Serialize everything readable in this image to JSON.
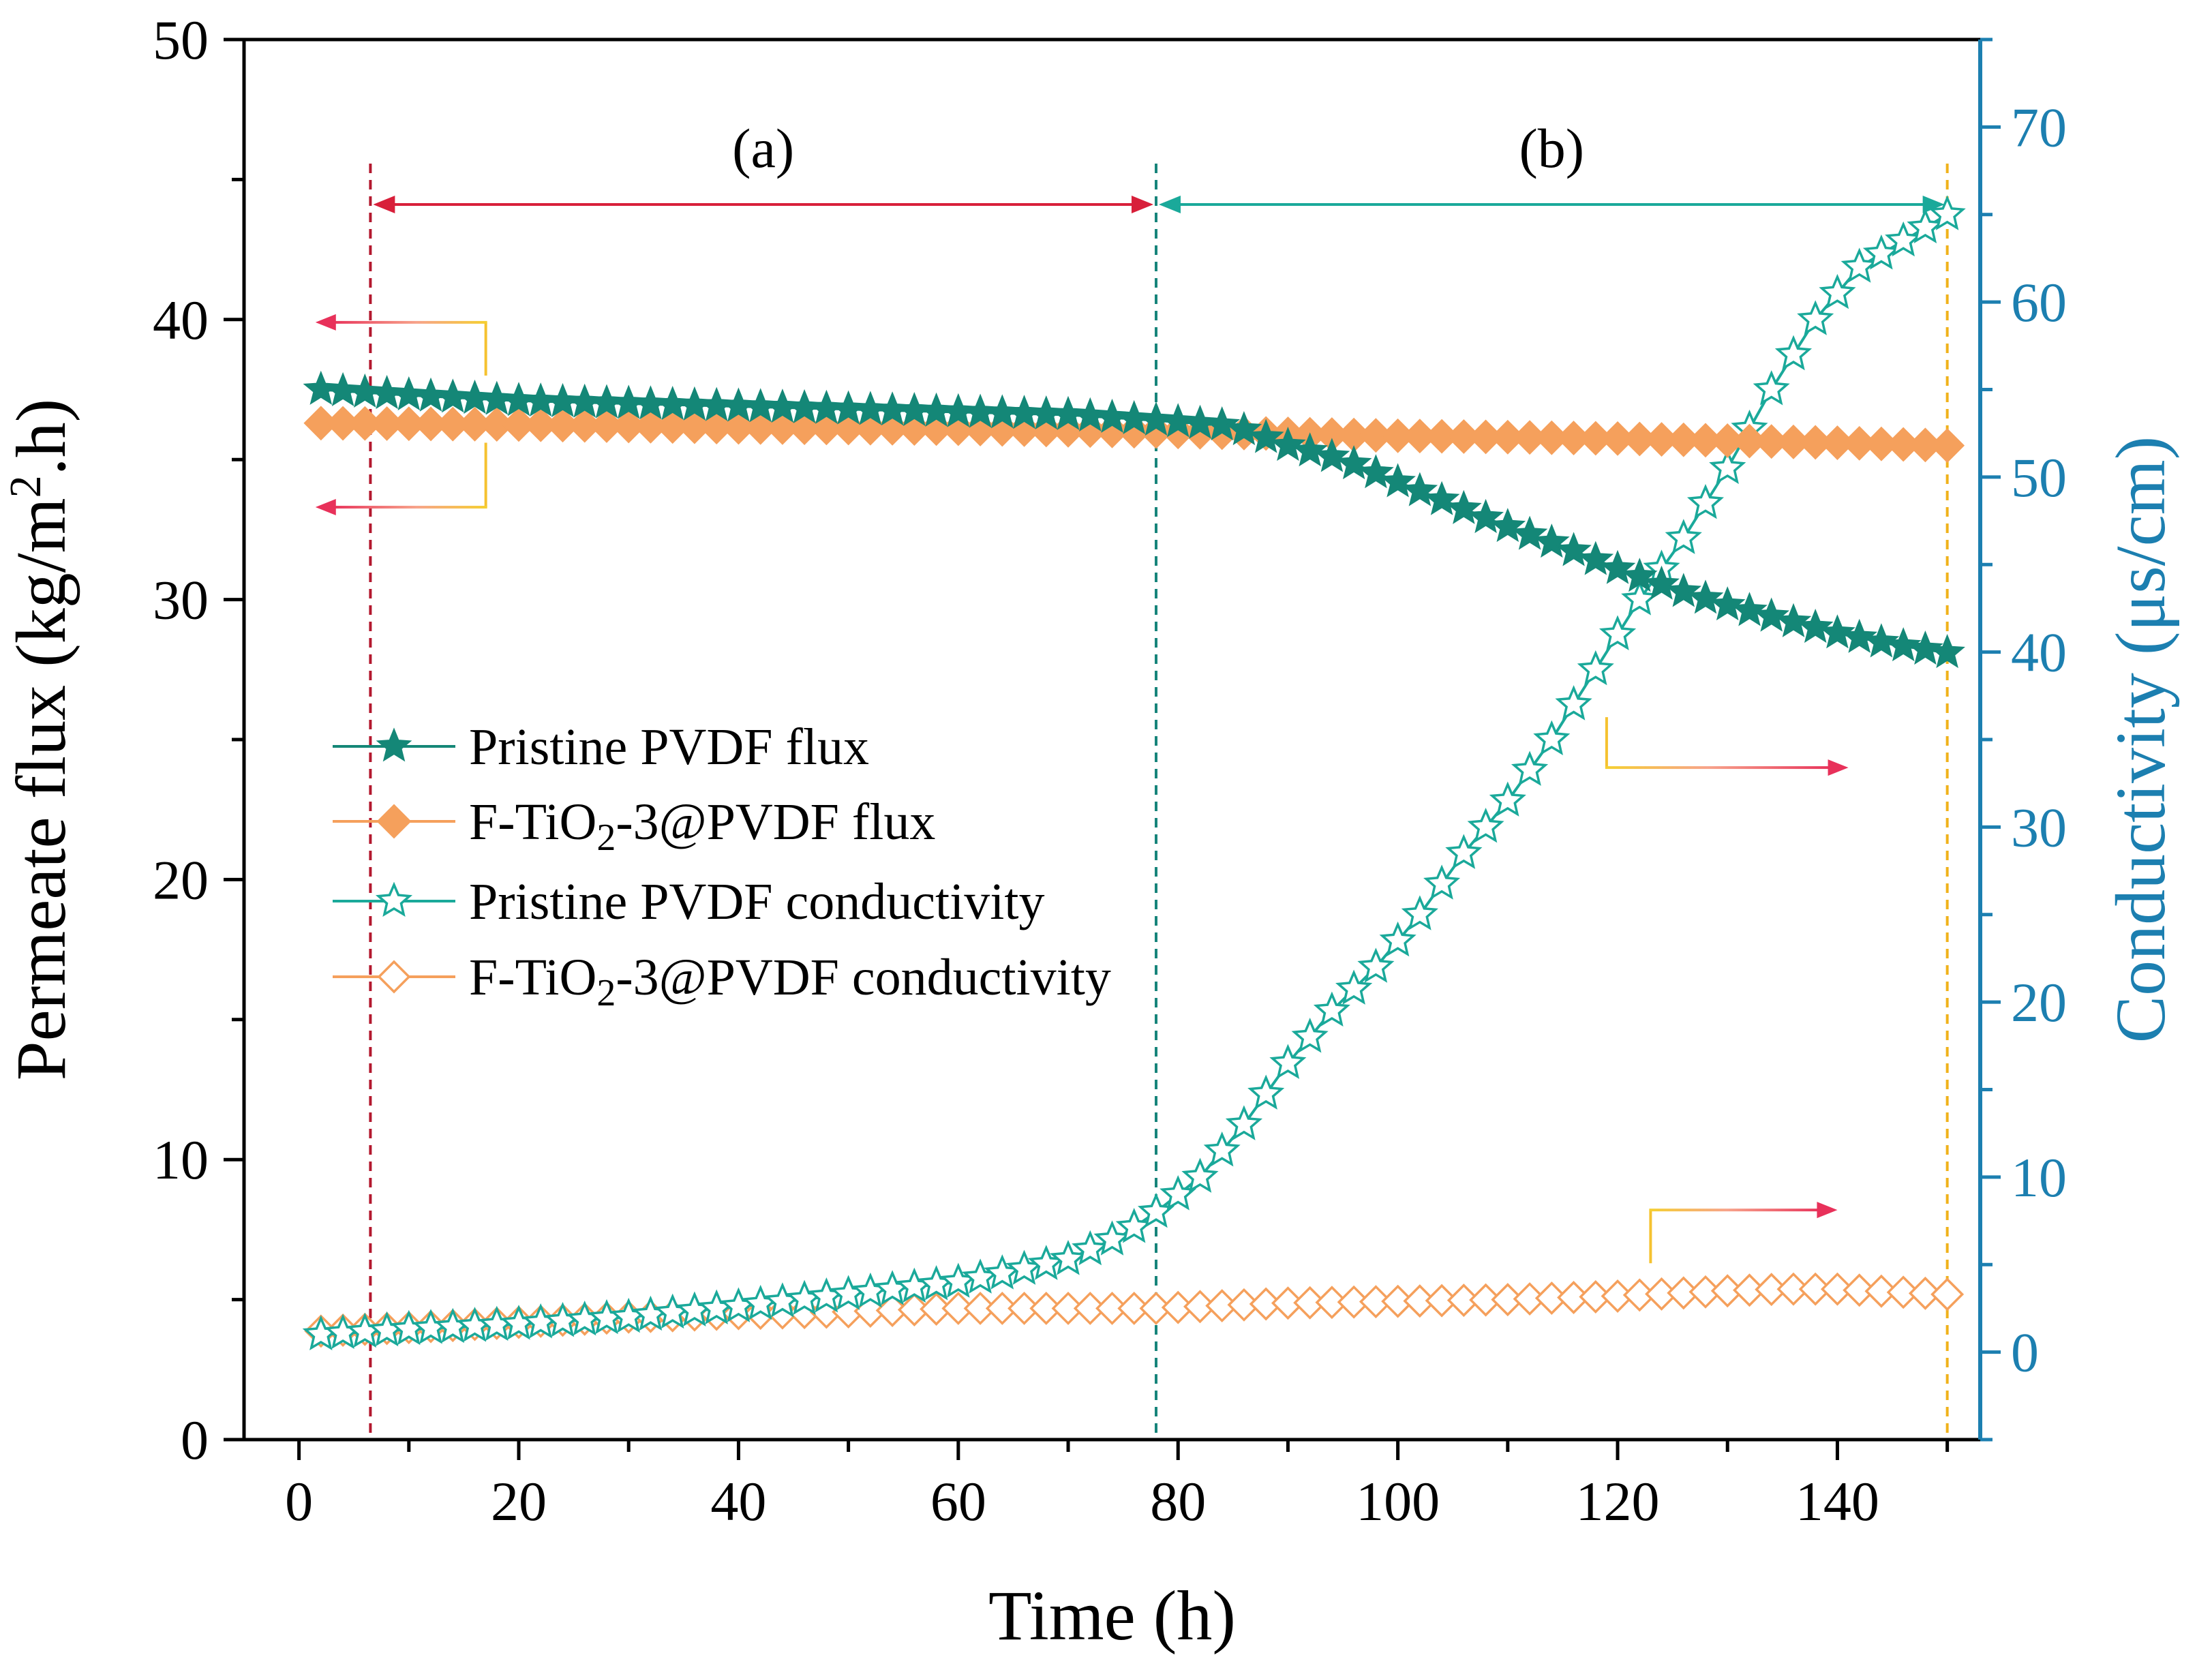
{
  "chart_data": {
    "type": "line",
    "title": "",
    "xlabel": "Time (h)",
    "ylabel_parts": [
      "Permeate flux (kg/m",
      "2",
      ".h)"
    ],
    "y2label": "Conductivity (μs/cm)",
    "xlim": [
      -5,
      153
    ],
    "ylim": [
      0,
      50
    ],
    "y2lim": [
      -5,
      75
    ],
    "x_ticks": [
      0,
      20,
      40,
      60,
      80,
      100,
      120,
      140
    ],
    "y_ticks": [
      0,
      10,
      20,
      30,
      40,
      50
    ],
    "y2_ticks": [
      0,
      10,
      20,
      30,
      40,
      50,
      60,
      70
    ],
    "regions": [
      {
        "label": "(a)",
        "from": 6.5,
        "to": 78,
        "color": "#d81f3a"
      },
      {
        "label": "(b)",
        "from": 78,
        "to": 150,
        "color": "#1aa99a"
      }
    ],
    "boundary_lines": [
      {
        "x": 6.5,
        "color": "#b3182e"
      },
      {
        "x": 78,
        "color": "#16847a"
      },
      {
        "x": 150,
        "color": "#f0b21b"
      }
    ],
    "indicator_arrows": [
      {
        "target": "left",
        "anchor_x": 17,
        "anchor_y": 38,
        "end_x": 1.5,
        "end_y": 39.9
      },
      {
        "target": "left",
        "anchor_x": 17,
        "anchor_y": 35.6,
        "end_x": 1.5,
        "end_y": 33.3
      },
      {
        "target": "right",
        "anchor_x": 119,
        "anchor_y": 25.8,
        "end_x": 141,
        "end_y": 24.0
      },
      {
        "target": "right",
        "anchor_x": 123,
        "anchor_y": 6.3,
        "end_x": 140,
        "end_y": 8.2
      }
    ],
    "legend_position": "center-left",
    "series": [
      {
        "name": "Pristine PVDF flux",
        "label_parts": [
          "Pristine PVDF flux"
        ],
        "axis": "left",
        "marker": "star-filled",
        "color": "#148777",
        "x": [
          2,
          10,
          20,
          30,
          40,
          50,
          60,
          70,
          78,
          85,
          90,
          95,
          100,
          105,
          110,
          115,
          120,
          125,
          130,
          135,
          140,
          145,
          150
        ],
        "y": [
          37.5,
          37.3,
          37.1,
          37.0,
          36.9,
          36.8,
          36.7,
          36.6,
          36.4,
          36.2,
          35.5,
          35.0,
          34.2,
          33.4,
          32.6,
          31.9,
          31.1,
          30.4,
          29.8,
          29.3,
          28.8,
          28.4,
          28.1
        ]
      },
      {
        "name": "F-TiO2-3@PVDF flux",
        "label_parts": [
          "F-TiO",
          "2",
          "-3@PVDF flux"
        ],
        "axis": "left",
        "marker": "diamond-filled",
        "color": "#f5a05c",
        "x": [
          2,
          20,
          40,
          60,
          78,
          100,
          120,
          140,
          150
        ],
        "y": [
          36.3,
          36.25,
          36.15,
          36.1,
          36.0,
          35.85,
          35.75,
          35.6,
          35.5
        ]
      },
      {
        "name": "Pristine PVDF conductivity",
        "label_parts": [
          "Pristine PVDF conductivity"
        ],
        "axis": "right",
        "marker": "star-open",
        "color": "#1aa99a",
        "x": [
          2,
          10,
          20,
          30,
          40,
          50,
          60,
          65,
          70,
          75,
          78,
          82,
          86,
          90,
          94,
          98,
          102,
          106,
          110,
          114,
          118,
          122,
          126,
          130,
          134,
          138,
          142,
          146,
          150
        ],
        "y": [
          1.0,
          1.3,
          1.6,
          2.0,
          2.6,
          3.3,
          4.0,
          4.6,
          5.3,
          6.7,
          8.0,
          10.0,
          13.0,
          16.5,
          19.5,
          22.0,
          25.0,
          28.5,
          31.5,
          35.0,
          39.0,
          43.0,
          46.5,
          50.5,
          55.0,
          59.0,
          62.0,
          63.5,
          65.0
        ]
      },
      {
        "name": "F-TiO2-3@PVDF conductivity",
        "label_parts": [
          "F-TiO",
          "2",
          "-3@PVDF conductivity"
        ],
        "axis": "right",
        "marker": "diamond-open",
        "color": "#f5a05c",
        "x": [
          2,
          10,
          20,
          30,
          40,
          50,
          60,
          70,
          78,
          90,
          100,
          110,
          120,
          130,
          135,
          140,
          150
        ],
        "y": [
          1.2,
          1.4,
          1.7,
          2.0,
          2.2,
          2.3,
          2.5,
          2.5,
          2.5,
          2.8,
          2.9,
          3.0,
          3.2,
          3.5,
          3.6,
          3.6,
          3.3
        ]
      }
    ]
  }
}
